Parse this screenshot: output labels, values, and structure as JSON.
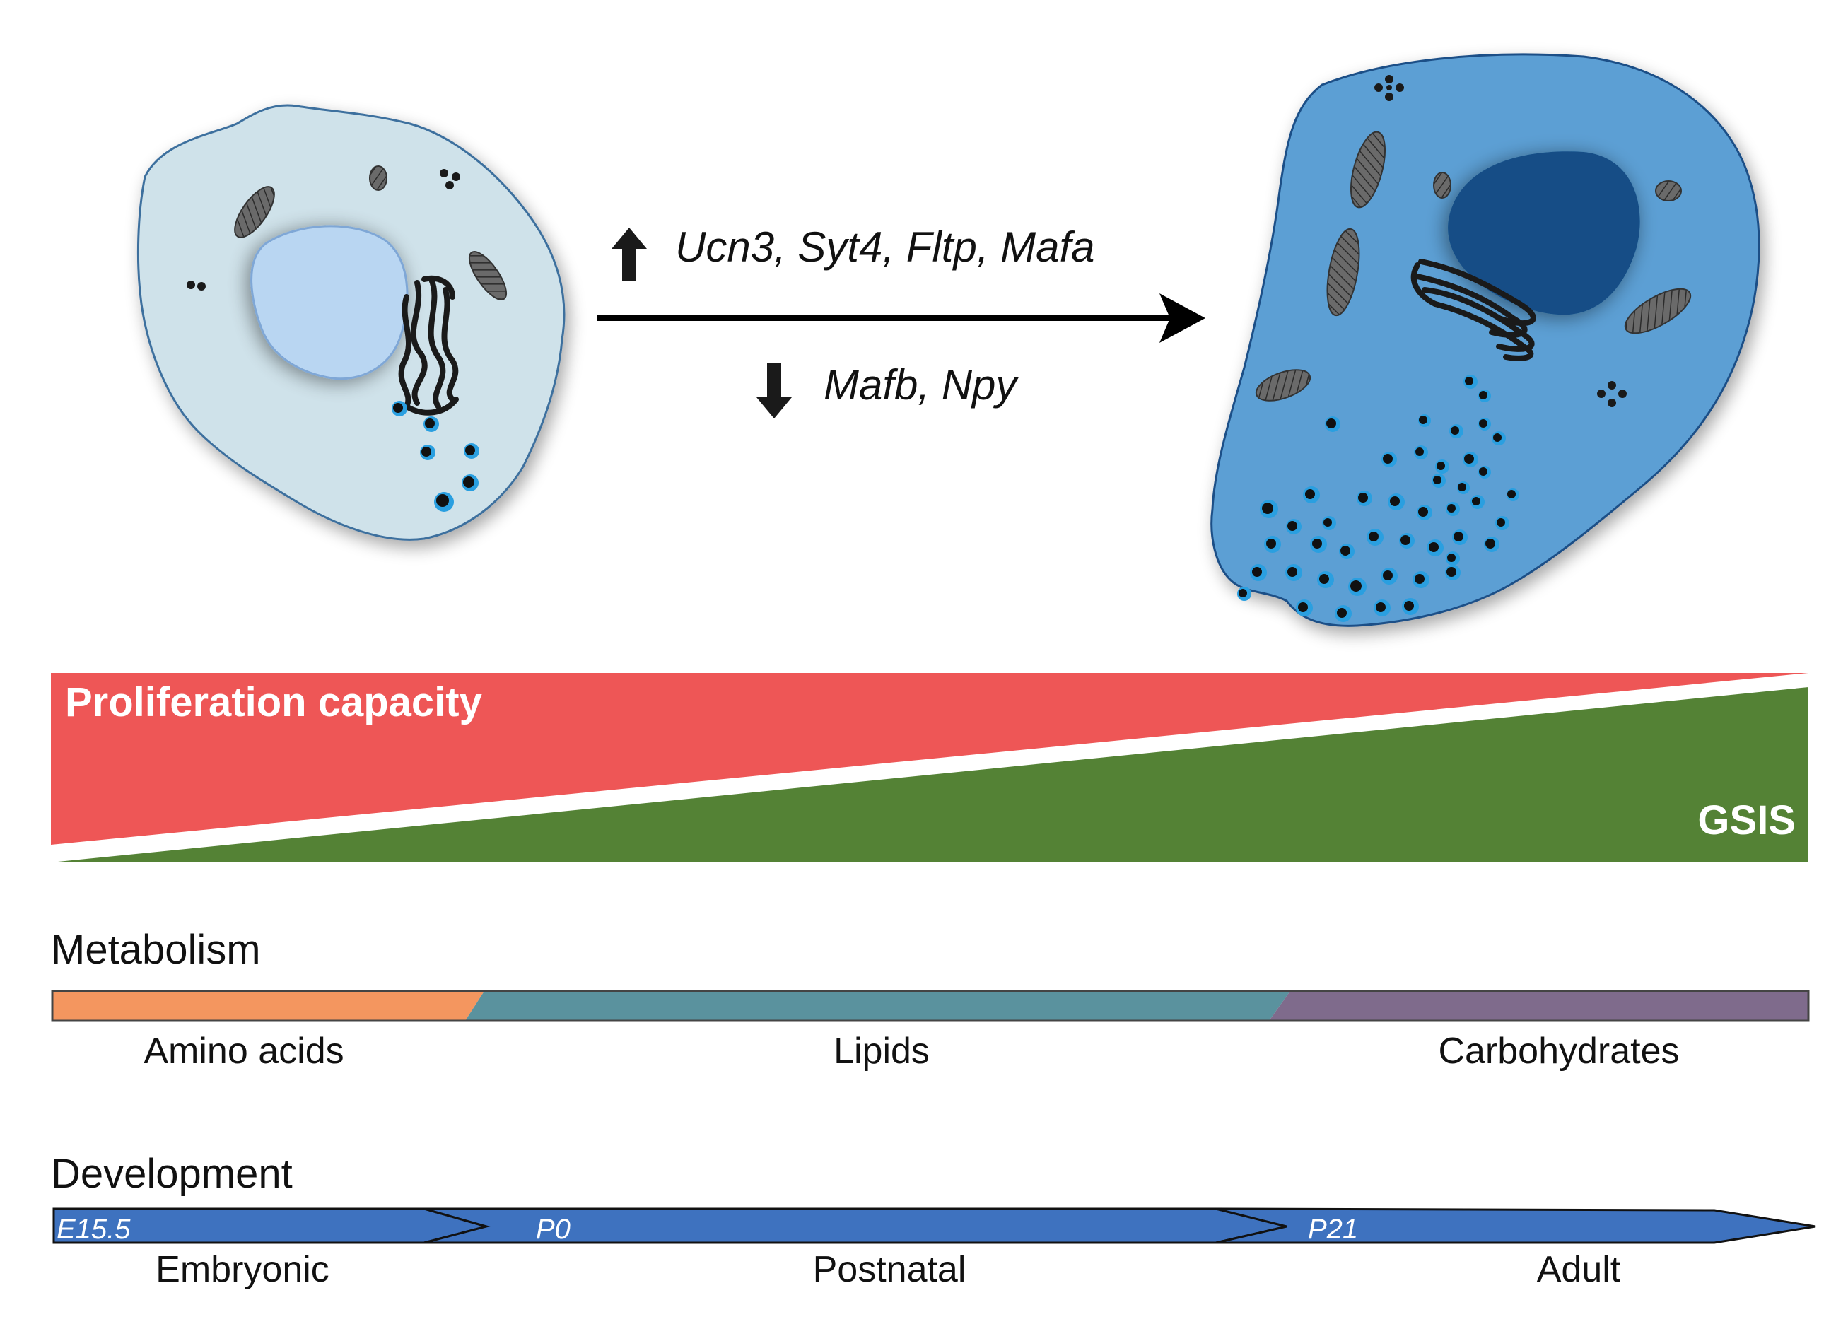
{
  "genes": {
    "up": "Ucn3, Syt4, Fltp, Mafa",
    "down": "Mafb, Npy"
  },
  "gradient": {
    "decreasing_label": "Proliferation capacity",
    "increasing_label": "GSIS"
  },
  "metabolism": {
    "title": "Metabolism",
    "segments": [
      "Amino acids",
      "Lipids",
      "Carbohydrates"
    ]
  },
  "development": {
    "title": "Development",
    "markers": [
      "E15.5",
      "P0",
      "P21"
    ],
    "stages": [
      "Embryonic",
      "Postnatal",
      "Adult"
    ]
  },
  "colors": {
    "immature_cell": "#cfe2ea",
    "immature_nucleus": "#b9d6f2",
    "mature_cell": "#5b9fd4",
    "mature_nucleus": "#124e86",
    "proliferation": "#ee5656",
    "gsis": "#548235",
    "amino_acids": "#f4965f",
    "lipids": "#5a929e",
    "carbohydrates": "#7f6b8c",
    "development_arrow": "#3e72bf"
  }
}
